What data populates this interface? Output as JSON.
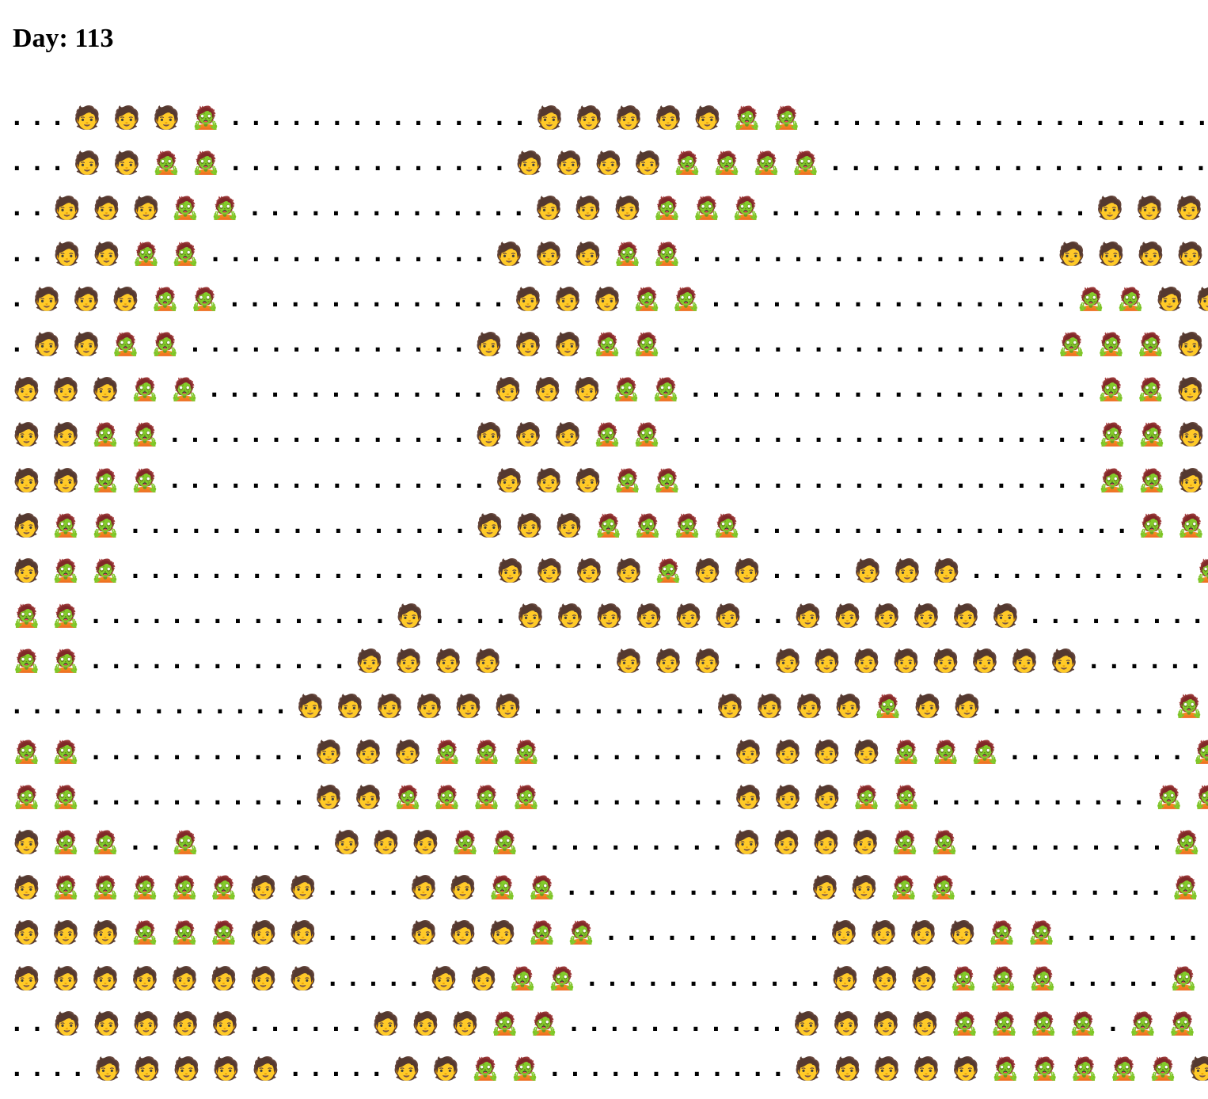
{
  "header": {
    "title": "Day: 113"
  },
  "grid": {
    "rows": [
      "...🧑🧑🧑🧟...............🧑🧑🧑🧑🧑🧟🧟.....................",
      "...🧑🧑🧟🧟..............🧑🧑🧑🧑🧟🧟🧟🧟.....................",
      "..🧑🧑🧑🧟🧟..............🧑🧑🧑🧟🧟🧟................🧑🧑🧑....",
      "..🧑🧑🧟🧟..............🧑🧑🧑🧟🧟..................🧑🧑🧑🧑...",
      ".🧑🧑🧑🧟🧟..............🧑🧑🧑🧟🧟..................🧟🧟🧑🧑🧑..",
      ".🧑🧑🧟🧟..............🧑🧑🧑🧟🧟...................🧟🧟🧟🧑🧑..",
      "🧑🧑🧑🧟🧟..............🧑🧑🧑🧟🧟....................🧟🧟🧑🧑🧑.",
      "🧑🧑🧟🧟...............🧑🧑🧑🧟🧟.....................🧟🧟🧑🧑.",
      "🧑🧑🧟🧟................🧑🧑🧑🧟🧟....................🧟🧟🧑🧑🧑",
      "🧑🧟🧟.................🧑🧑🧑🧟🧟🧟🧟...................🧟🧟🧑🧑",
      "🧑🧟🧟..................🧑🧑🧑🧑🧟🧑🧑....🧑🧑🧑...........🧟🧟🧑🧑",
      "🧟🧟...............🧑....🧑🧑🧑🧑🧑🧑..🧑🧑🧑🧑🧑🧑..........🧟🧟🧑",
      "🧟🧟.............🧑🧑🧑🧑.....🧑🧑🧑..🧑🧑🧑🧑🧑🧑🧑🧑........🧟🧟",
      "..............🧑🧑🧑🧑🧑🧑.........🧑🧑🧑🧑🧟🧑🧑.........🧟🧟🧑🧑",
      "🧟🧟...........🧑🧑🧑🧟🧟🧟.........🧑🧑🧑🧑🧟🧟🧟.........🧟🧟🧑🧑",
      "🧟🧟...........🧑🧑🧟🧟🧟🧟.........🧑🧑🧑🧟🧟...........🧟🧟🧑🧑",
      "🧑🧟🧟..🧟......🧑🧑🧑🧟🧟..........🧑🧑🧑🧑🧟🧟..........🧟🧟🧑🧑",
      "🧑🧟🧟🧟🧟🧟🧑🧑....🧑🧑🧟🧟............🧑🧑🧟🧟..........🧟🧟🧑",
      "🧑🧑🧑🧟🧟🧟🧑🧑....🧑🧑🧑🧟🧟...........🧑🧑🧑🧑🧟🧟........🧟🧟🧑",
      "🧑🧑🧑🧑🧑🧑🧑🧑.....🧑🧑🧟🧟............🧑🧑🧑🧟🧟🧟.....🧟🧟🧟🧟🧑",
      "..🧑🧑🧑🧑🧑......🧑🧑🧑🧟🧟...........🧑🧑🧑🧑🧟🧟🧟🧟.🧟🧟🧟🧟🧑🧑",
      "....🧑🧑🧑🧑🧑.....🧑🧑🧟🧟............🧑🧑🧑🧑🧑🧟🧟🧟🧟🧟🧑🧑🧑🧑"
    ]
  }
}
